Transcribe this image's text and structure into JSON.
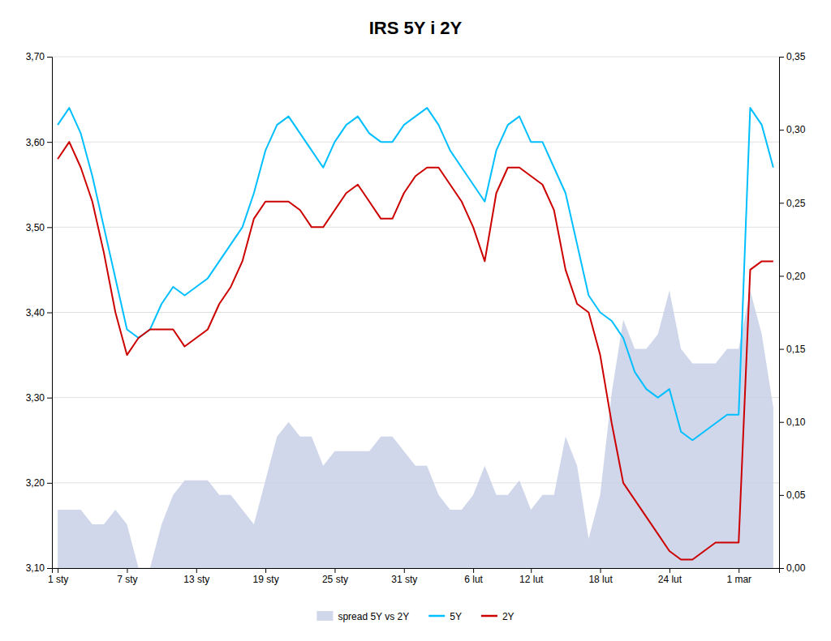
{
  "chart_data": {
    "type": "line",
    "title": "IRS 5Y i 2Y",
    "categories": [
      "1 sty",
      null,
      null,
      null,
      null,
      null,
      "7 sty",
      null,
      null,
      null,
      null,
      null,
      "13 sty",
      null,
      null,
      null,
      null,
      null,
      "19 sty",
      null,
      null,
      null,
      null,
      null,
      "25 sty",
      null,
      null,
      null,
      null,
      null,
      "31 sty",
      null,
      null,
      null,
      null,
      null,
      "6 lut",
      null,
      null,
      null,
      null,
      "12 lut",
      null,
      null,
      null,
      null,
      null,
      "18 lut",
      null,
      null,
      null,
      null,
      null,
      "24 lut",
      null,
      null,
      null,
      null,
      null,
      "1 mar",
      null,
      null,
      null
    ],
    "series": [
      {
        "name": "spread 5Y vs 2Y",
        "type": "area",
        "axis": "y2",
        "color": "#C8D0E8",
        "values": [
          0.04,
          0.04,
          0.04,
          0.03,
          0.03,
          0.04,
          0.03,
          0.0,
          0.0,
          0.03,
          0.05,
          0.06,
          0.06,
          0.06,
          0.05,
          0.05,
          0.04,
          0.03,
          0.06,
          0.09,
          0.1,
          0.09,
          0.09,
          0.07,
          0.08,
          0.08,
          0.08,
          0.08,
          0.09,
          0.09,
          0.08,
          0.07,
          0.07,
          0.05,
          0.04,
          0.04,
          0.05,
          0.07,
          0.05,
          0.05,
          0.06,
          0.04,
          0.05,
          0.05,
          0.09,
          0.07,
          0.02,
          0.05,
          0.12,
          0.17,
          0.15,
          0.15,
          0.16,
          0.19,
          0.15,
          0.14,
          0.14,
          0.14,
          0.15,
          0.15,
          0.19,
          0.16,
          0.11
        ]
      },
      {
        "name": "5Y",
        "type": "line",
        "color": "#00BFFF",
        "values": [
          3.62,
          3.64,
          3.61,
          3.56,
          3.5,
          3.44,
          3.38,
          3.37,
          3.38,
          3.41,
          3.43,
          3.42,
          3.43,
          3.44,
          3.46,
          3.48,
          3.5,
          3.54,
          3.59,
          3.62,
          3.63,
          3.61,
          3.59,
          3.57,
          3.6,
          3.62,
          3.63,
          3.61,
          3.6,
          3.6,
          3.62,
          3.63,
          3.64,
          3.62,
          3.59,
          3.57,
          3.55,
          3.53,
          3.59,
          3.62,
          3.63,
          3.6,
          3.6,
          3.57,
          3.54,
          3.48,
          3.42,
          3.4,
          3.39,
          3.37,
          3.33,
          3.31,
          3.3,
          3.31,
          3.26,
          3.25,
          3.26,
          3.27,
          3.28,
          3.28,
          3.64,
          3.62,
          3.57
        ]
      },
      {
        "name": "2Y",
        "type": "line",
        "color": "#CC0000",
        "values": [
          3.58,
          3.6,
          3.57,
          3.53,
          3.47,
          3.4,
          3.35,
          3.37,
          3.38,
          3.38,
          3.38,
          3.36,
          3.37,
          3.38,
          3.41,
          3.43,
          3.46,
          3.51,
          3.53,
          3.53,
          3.53,
          3.52,
          3.5,
          3.5,
          3.52,
          3.54,
          3.55,
          3.53,
          3.51,
          3.51,
          3.54,
          3.56,
          3.57,
          3.57,
          3.55,
          3.53,
          3.5,
          3.46,
          3.54,
          3.57,
          3.57,
          3.56,
          3.55,
          3.52,
          3.45,
          3.41,
          3.4,
          3.35,
          3.27,
          3.2,
          3.18,
          3.16,
          3.14,
          3.12,
          3.11,
          3.11,
          3.12,
          3.13,
          3.13,
          3.13,
          3.45,
          3.46,
          3.46
        ]
      }
    ],
    "ylim": [
      3.1,
      3.7
    ],
    "yticks": [
      {
        "value": 3.1,
        "label": "3,10"
      },
      {
        "value": 3.2,
        "label": "3,20"
      },
      {
        "value": 3.3,
        "label": "3,30"
      },
      {
        "value": 3.4,
        "label": "3,40"
      },
      {
        "value": 3.5,
        "label": "3,50"
      },
      {
        "value": 3.6,
        "label": "3,60"
      },
      {
        "value": 3.7,
        "label": "3,70"
      }
    ],
    "y2lim": [
      0.0,
      0.35
    ],
    "y2ticks": [
      {
        "value": 0.0,
        "label": "0,00"
      },
      {
        "value": 0.05,
        "label": "0,05"
      },
      {
        "value": 0.1,
        "label": "0,10"
      },
      {
        "value": 0.15,
        "label": "0,15"
      },
      {
        "value": 0.2,
        "label": "0,20"
      },
      {
        "value": 0.25,
        "label": "0,25"
      },
      {
        "value": 0.3,
        "label": "0,30"
      },
      {
        "value": 0.35,
        "label": "0,35"
      }
    ],
    "grid": true,
    "legend": "bottom"
  }
}
